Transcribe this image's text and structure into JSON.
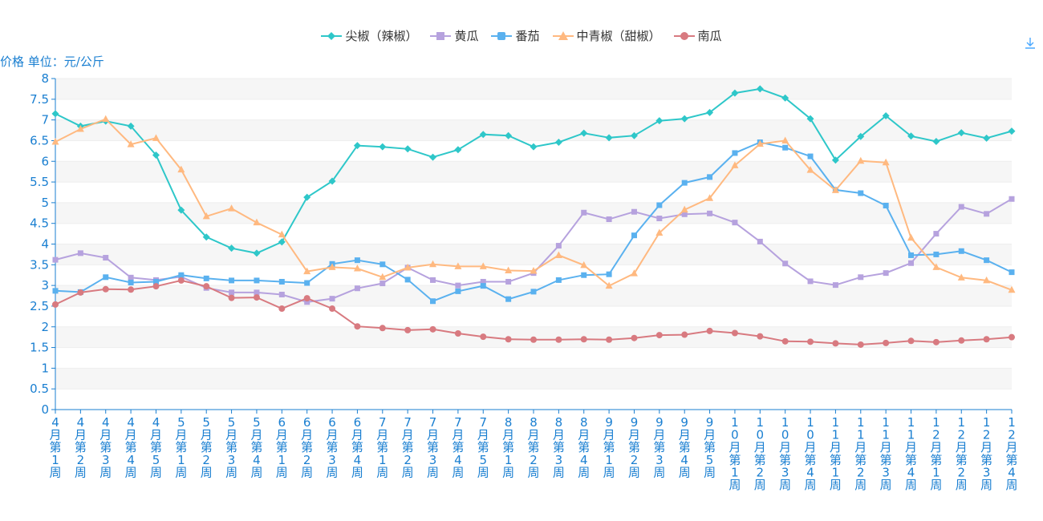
{
  "chart_data": {
    "type": "line",
    "ylabel": "价格 单位：元/公斤",
    "ylim": [
      0,
      8
    ],
    "yticks": [
      "0",
      "0.5",
      "1",
      "1.5",
      "2",
      "2.5",
      "3",
      "3.5",
      "4",
      "4.5",
      "5",
      "5.5",
      "6",
      "6.5",
      "7",
      "7.5",
      "8"
    ],
    "grid": "horizontal-banded",
    "legend_position": "top-center",
    "categories": [
      "4月第1周",
      "4月第2周",
      "4月第3周",
      "4月第4周",
      "4月第5周",
      "5月第1周",
      "5月第2周",
      "5月第3周",
      "5月第4周",
      "6月第1周",
      "6月第2周",
      "6月第3周",
      "6月第4周",
      "7月第1周",
      "7月第2周",
      "7月第3周",
      "7月第4周",
      "7月第5周",
      "8月第1周",
      "8月第2周",
      "8月第3周",
      "8月第4周",
      "9月第1周",
      "9月第2周",
      "9月第3周",
      "9月第4周",
      "9月第5周",
      "10月第1周",
      "10月第2周",
      "10月第3周",
      "10月第4周",
      "11月第1周",
      "11月第2周",
      "11月第3周",
      "11月第4周",
      "12月第1周",
      "12月第2周",
      "12月第3周",
      "12月第4周"
    ],
    "series": [
      {
        "name": "尖椒（辣椒）",
        "color": "#2ec7c9",
        "marker": "diamond",
        "values": [
          7.15,
          6.85,
          6.97,
          6.85,
          6.15,
          4.82,
          4.17,
          3.9,
          3.78,
          4.05,
          5.13,
          5.52,
          6.38,
          6.35,
          6.3,
          6.1,
          6.28,
          6.65,
          6.62,
          6.35,
          6.46,
          6.68,
          6.57,
          6.62,
          6.98,
          7.03,
          7.18,
          7.65,
          7.75,
          7.53,
          7.03,
          6.03,
          6.6,
          7.1,
          6.61,
          6.48,
          6.69,
          6.56,
          6.73
        ]
      },
      {
        "name": "黄瓜",
        "color": "#b6a2de",
        "marker": "square",
        "values": [
          3.62,
          3.78,
          3.67,
          3.19,
          3.13,
          3.21,
          2.94,
          2.83,
          2.83,
          2.78,
          2.6,
          2.68,
          2.93,
          3.05,
          3.43,
          3.13,
          3.0,
          3.09,
          3.09,
          3.3,
          3.96,
          4.76,
          4.6,
          4.78,
          4.62,
          4.72,
          4.74,
          4.52,
          4.06,
          3.53,
          3.1,
          3.01,
          3.2,
          3.3,
          3.54,
          4.25,
          4.9,
          4.73,
          5.09
        ]
      },
      {
        "name": "番茄",
        "color": "#5ab1ef",
        "marker": "square",
        "values": [
          2.87,
          2.84,
          3.2,
          3.07,
          3.09,
          3.25,
          3.17,
          3.12,
          3.12,
          3.09,
          3.06,
          3.52,
          3.61,
          3.51,
          3.14,
          2.62,
          2.86,
          2.99,
          2.67,
          2.85,
          3.13,
          3.25,
          3.27,
          4.21,
          4.94,
          5.48,
          5.62,
          6.2,
          6.46,
          6.33,
          6.12,
          5.31,
          5.23,
          4.93,
          3.73,
          3.75,
          3.83,
          3.61,
          3.32
        ]
      },
      {
        "name": "中青椒（甜椒）",
        "color": "#ffb980",
        "marker": "triangle",
        "values": [
          6.47,
          6.78,
          7.02,
          6.41,
          6.56,
          5.8,
          4.67,
          4.86,
          4.52,
          4.23,
          3.34,
          3.44,
          3.41,
          3.2,
          3.43,
          3.51,
          3.46,
          3.46,
          3.36,
          3.35,
          3.73,
          3.49,
          2.99,
          3.29,
          4.27,
          4.83,
          5.11,
          5.9,
          6.42,
          6.5,
          5.79,
          5.3,
          6.01,
          5.97,
          4.15,
          3.44,
          3.19,
          3.12,
          2.89
        ]
      },
      {
        "name": "南瓜",
        "color": "#d87a80",
        "marker": "circle",
        "values": [
          2.54,
          2.83,
          2.91,
          2.9,
          2.98,
          3.12,
          2.98,
          2.7,
          2.71,
          2.44,
          2.69,
          2.44,
          2.01,
          1.97,
          1.92,
          1.94,
          1.84,
          1.76,
          1.7,
          1.69,
          1.69,
          1.7,
          1.69,
          1.73,
          1.8,
          1.81,
          1.9,
          1.85,
          1.77,
          1.65,
          1.64,
          1.6,
          1.57,
          1.61,
          1.66,
          1.63,
          1.67,
          1.7,
          1.75
        ]
      }
    ]
  }
}
